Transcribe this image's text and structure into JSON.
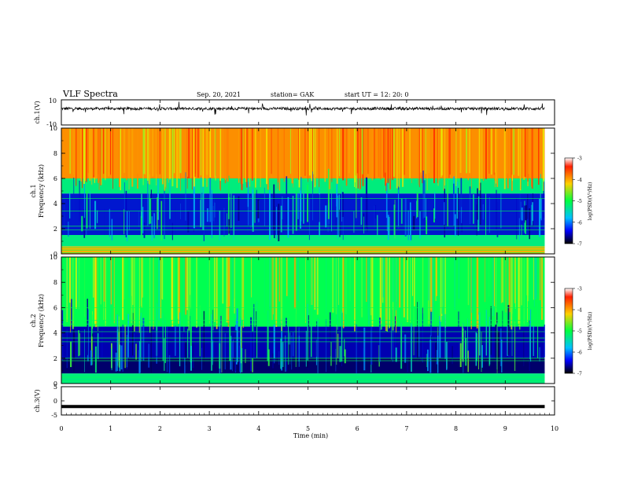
{
  "header": {
    "title": "VLF Spectra",
    "date": "Sep. 20, 2021",
    "station": "station= GAK",
    "start": "start  UT =   12: 20: 0"
  },
  "chart_data": [
    {
      "type": "line",
      "panel": "ch1-waveform",
      "ylabel": "ch.1(V)",
      "ylim": [
        -10,
        10
      ],
      "yticks": [
        -10,
        10
      ],
      "x_unit": "min",
      "xlim": [
        0,
        10
      ],
      "note_values": "noisy trace centered near 3 V, spikes up to ~10 V"
    },
    {
      "type": "heatmap",
      "panel": "ch1-spectrogram",
      "ylabel": "ch.1\nFrequency (kHz)",
      "ylim": [
        0,
        10
      ],
      "yticks": [
        0,
        2,
        4,
        6,
        8,
        10
      ],
      "xlim": [
        0,
        10
      ],
      "colorbar": {
        "label": "log(PSD)(V²/Hz)",
        "ticks": [
          -3,
          -4,
          -5,
          -6,
          -7
        ],
        "range": [
          -7,
          -3
        ]
      },
      "bands": [
        {
          "from_khz": 0,
          "to_khz": 0.6,
          "level": -3.8
        },
        {
          "from_khz": 0.6,
          "to_khz": 1.5,
          "level": -5.0
        },
        {
          "from_khz": 1.5,
          "to_khz": 4.8,
          "level": -6.3
        },
        {
          "from_khz": 4.8,
          "to_khz": 6.0,
          "level": -5.0
        },
        {
          "from_khz": 6.0,
          "to_khz": 10,
          "level": -3.6
        }
      ],
      "data_end_min": 9.8
    },
    {
      "type": "heatmap",
      "panel": "ch2-spectrogram",
      "ylabel": "ch.2\nFrequency (kHz)",
      "ylim": [
        0,
        10
      ],
      "yticks": [
        0,
        2,
        4,
        6,
        8,
        10
      ],
      "xlim": [
        0,
        10
      ],
      "colorbar": {
        "label": "log(PSD)(V²/Hz)",
        "ticks": [
          -3,
          -4,
          -5,
          -6,
          -7
        ],
        "range": [
          -7,
          -3
        ]
      },
      "bands": [
        {
          "from_khz": 0,
          "to_khz": 0.8,
          "level": -5.0
        },
        {
          "from_khz": 0.8,
          "to_khz": 2.0,
          "level": -6.8
        },
        {
          "from_khz": 2.0,
          "to_khz": 4.5,
          "level": -6.5
        },
        {
          "from_khz": 4.5,
          "to_khz": 10,
          "level": -4.8
        }
      ],
      "data_end_min": 9.8
    },
    {
      "type": "line",
      "panel": "ch3-waveform",
      "ylabel": "ch.3(V)",
      "ylim": [
        -5,
        5
      ],
      "yticks": [
        -5,
        0,
        5
      ],
      "xlabel": "Time (min)",
      "xlim": [
        0,
        10
      ],
      "xticks": [
        0,
        1,
        2,
        3,
        4,
        5,
        6,
        7,
        8,
        9,
        10
      ],
      "constant_value": -2,
      "data_end_min": 9.8
    }
  ]
}
